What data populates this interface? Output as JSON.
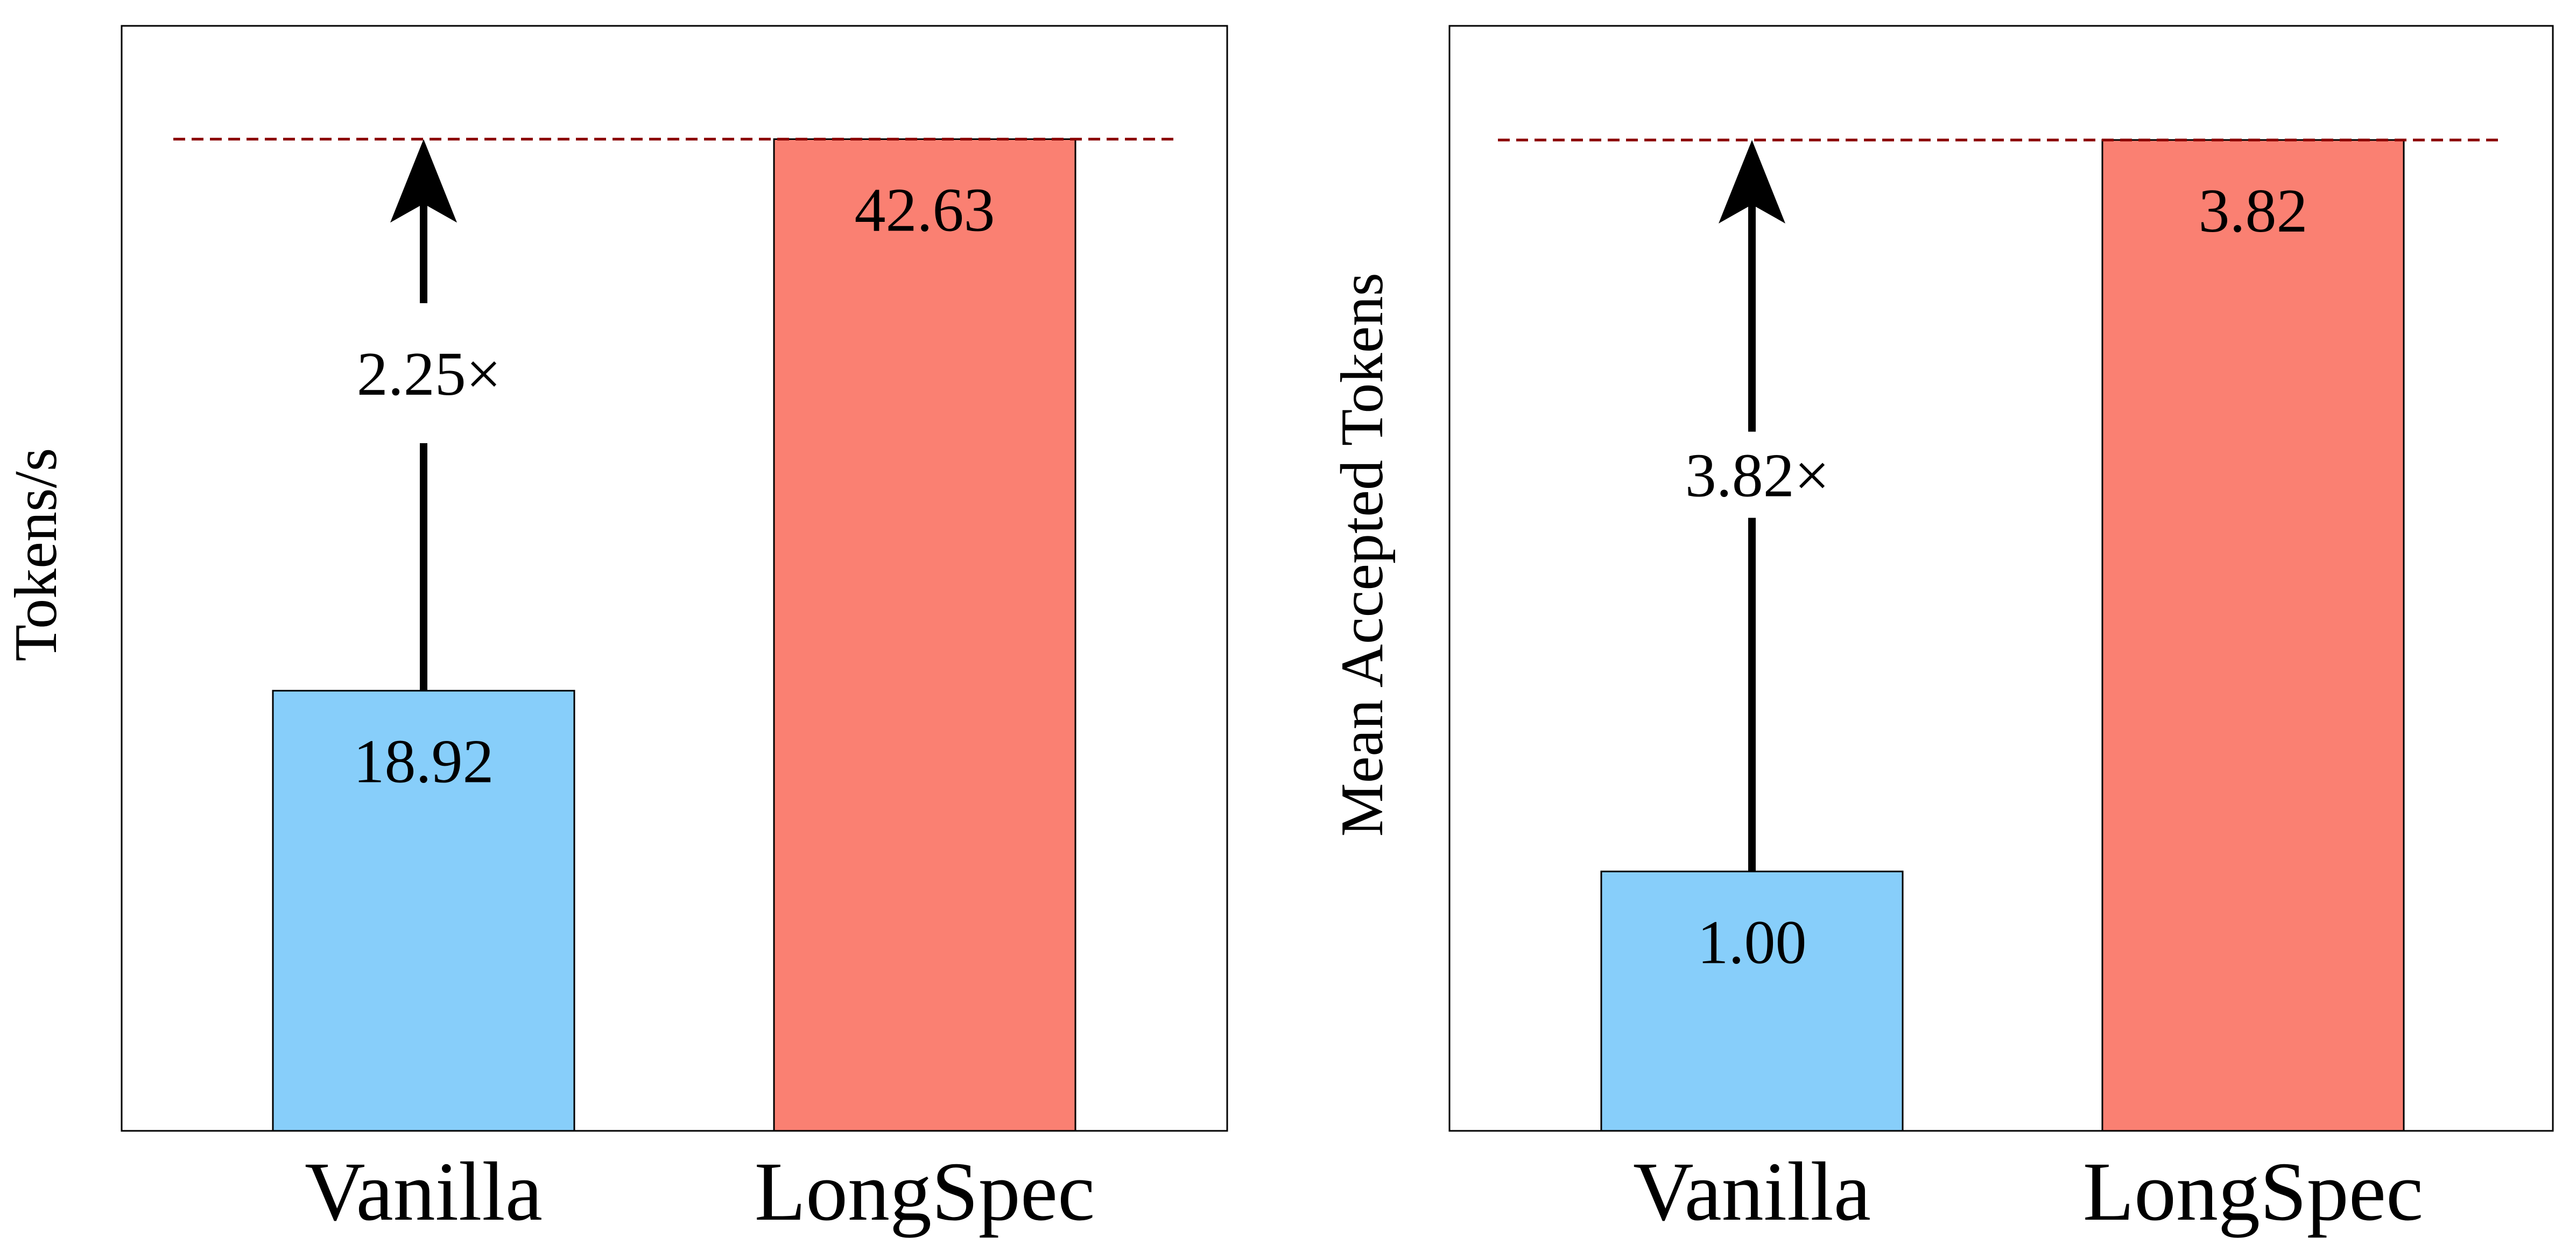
{
  "chart_data": [
    {
      "type": "bar",
      "categories": [
        "Vanilla",
        "LongSpec"
      ],
      "values": [
        18.92,
        42.63
      ],
      "value_labels": [
        "18.92",
        "42.63"
      ],
      "ylabel": "Tokens/s",
      "ylim": [
        0,
        47.5
      ],
      "speedup_label": "2.25×",
      "reference_line": 42.63,
      "grid": false,
      "colors": {
        "bars": [
          "#87CEFA",
          "#FA8072"
        ],
        "reference_line": "#8B0000",
        "arrow": "#000000"
      }
    },
    {
      "type": "bar",
      "categories": [
        "Vanilla",
        "LongSpec"
      ],
      "values": [
        1.0,
        3.82
      ],
      "value_labels": [
        "1.00",
        "3.82"
      ],
      "ylabel": "Mean Accepted Tokens",
      "ylim": [
        0,
        4.26
      ],
      "speedup_label": "3.82×",
      "reference_line": 3.82,
      "grid": false,
      "colors": {
        "bars": [
          "#87CEFA",
          "#FA8072"
        ],
        "reference_line": "#8B0000",
        "arrow": "#000000"
      }
    }
  ]
}
